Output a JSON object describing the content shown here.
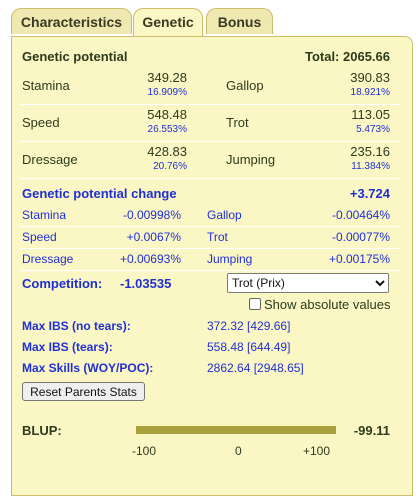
{
  "tabs": [
    {
      "label": "Characteristics"
    },
    {
      "label": "Genetic"
    },
    {
      "label": "Bonus"
    }
  ],
  "potential": {
    "title": "Genetic potential",
    "total_label": "Total: 2065.66",
    "stats": [
      {
        "name": "Stamina",
        "value": "349.28",
        "pct": "16.909%"
      },
      {
        "name": "Gallop",
        "value": "390.83",
        "pct": "18.921%"
      },
      {
        "name": "Speed",
        "value": "548.48",
        "pct": "26.553%"
      },
      {
        "name": "Trot",
        "value": "113.05",
        "pct": "5.473%"
      },
      {
        "name": "Dressage",
        "value": "428.83",
        "pct": "20.76%"
      },
      {
        "name": "Jumping",
        "value": "235.16",
        "pct": "11.384%"
      }
    ]
  },
  "change": {
    "title": "Genetic potential change",
    "total": "+3.724",
    "stats": [
      {
        "name": "Stamina",
        "value": "-0.00998%"
      },
      {
        "name": "Gallop",
        "value": "-0.00464%"
      },
      {
        "name": "Speed",
        "value": "+0.0067%"
      },
      {
        "name": "Trot",
        "value": "-0.00077%"
      },
      {
        "name": "Dressage",
        "value": "+0.00693%"
      },
      {
        "name": "Jumping",
        "value": "+0.00175%"
      }
    ]
  },
  "competition": {
    "label": "Competition:",
    "value": "-1.03535",
    "selected": "Trot (Prix)"
  },
  "show_absolute": {
    "label": "Show absolute values",
    "checked": false
  },
  "ibs": [
    {
      "label": "Max IBS (no tears):",
      "value": "372.32 [429.66]"
    },
    {
      "label": "Max IBS (tears):",
      "value": "558.48 [644.49]"
    },
    {
      "label": "Max Skills (WOY/POC):",
      "value": "2862.64 [2948.65]"
    }
  ],
  "reset_button": "Reset Parents Stats",
  "blup": {
    "label": "BLUP:",
    "value": "-99.11",
    "scale": [
      "-100",
      "0",
      "+100"
    ],
    "colors": {
      "bar": "#a8a03c"
    }
  }
}
